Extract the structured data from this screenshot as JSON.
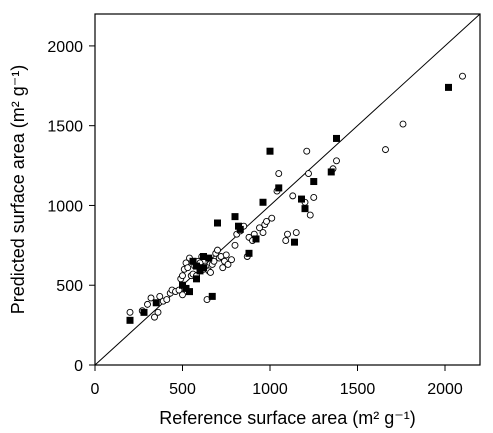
{
  "chart_data": {
    "type": "scatter",
    "xlabel": "Reference surface area (m² g⁻¹)",
    "ylabel": "Predicted surface area (m² g⁻¹)",
    "xlim": [
      0,
      2200
    ],
    "ylim": [
      0,
      2200
    ],
    "x_ticks": [
      0,
      500,
      1000,
      1500,
      2000
    ],
    "y_ticks": [
      0,
      500,
      1000,
      1500,
      2000
    ],
    "x_tick_labels": [
      "0",
      "500",
      "1000",
      "1500",
      "2000"
    ],
    "y_tick_labels": [
      "0",
      "500",
      "1000",
      "1500",
      "2000"
    ],
    "grid": false,
    "reference_line": {
      "type": "identity",
      "from": [
        0,
        0
      ],
      "to": [
        2200,
        2200
      ]
    },
    "series": [
      {
        "marker": "open-circle",
        "color": "#000000",
        "points": [
          [
            200,
            330
          ],
          [
            270,
            340
          ],
          [
            300,
            380
          ],
          [
            320,
            420
          ],
          [
            340,
            300
          ],
          [
            360,
            330
          ],
          [
            370,
            430
          ],
          [
            390,
            400
          ],
          [
            410,
            410
          ],
          [
            430,
            450
          ],
          [
            440,
            470
          ],
          [
            460,
            460
          ],
          [
            480,
            470
          ],
          [
            490,
            540
          ],
          [
            500,
            440
          ],
          [
            500,
            560
          ],
          [
            510,
            600
          ],
          [
            520,
            640
          ],
          [
            530,
            610
          ],
          [
            540,
            670
          ],
          [
            550,
            560
          ],
          [
            560,
            570
          ],
          [
            570,
            620
          ],
          [
            580,
            560
          ],
          [
            590,
            650
          ],
          [
            600,
            640
          ],
          [
            610,
            680
          ],
          [
            620,
            600
          ],
          [
            630,
            620
          ],
          [
            640,
            410
          ],
          [
            650,
            590
          ],
          [
            660,
            580
          ],
          [
            670,
            630
          ],
          [
            680,
            650
          ],
          [
            690,
            700
          ],
          [
            700,
            720
          ],
          [
            710,
            670
          ],
          [
            720,
            680
          ],
          [
            730,
            610
          ],
          [
            740,
            650
          ],
          [
            750,
            690
          ],
          [
            760,
            630
          ],
          [
            780,
            660
          ],
          [
            800,
            750
          ],
          [
            810,
            820
          ],
          [
            830,
            840
          ],
          [
            850,
            870
          ],
          [
            870,
            680
          ],
          [
            880,
            800
          ],
          [
            900,
            780
          ],
          [
            910,
            820
          ],
          [
            940,
            860
          ],
          [
            960,
            830
          ],
          [
            970,
            880
          ],
          [
            980,
            900
          ],
          [
            1040,
            1090
          ],
          [
            1050,
            1200
          ],
          [
            1090,
            780
          ],
          [
            1100,
            820
          ],
          [
            1150,
            830
          ],
          [
            1200,
            1020
          ],
          [
            1210,
            1340
          ],
          [
            1220,
            1200
          ],
          [
            1250,
            1050
          ],
          [
            1360,
            1230
          ],
          [
            1380,
            1280
          ],
          [
            1660,
            1350
          ],
          [
            1760,
            1510
          ],
          [
            2100,
            1810
          ],
          [
            1230,
            940
          ],
          [
            1010,
            920
          ],
          [
            1130,
            1060
          ]
        ]
      },
      {
        "marker": "filled-square",
        "color": "#000000",
        "points": [
          [
            200,
            280
          ],
          [
            280,
            330
          ],
          [
            350,
            390
          ],
          [
            500,
            500
          ],
          [
            520,
            480
          ],
          [
            540,
            460
          ],
          [
            560,
            650
          ],
          [
            580,
            620
          ],
          [
            600,
            590
          ],
          [
            620,
            610
          ],
          [
            650,
            670
          ],
          [
            670,
            430
          ],
          [
            700,
            890
          ],
          [
            800,
            930
          ],
          [
            820,
            870
          ],
          [
            830,
            850
          ],
          [
            880,
            700
          ],
          [
            920,
            790
          ],
          [
            960,
            1020
          ],
          [
            1000,
            1340
          ],
          [
            1050,
            1110
          ],
          [
            1140,
            770
          ],
          [
            1180,
            1040
          ],
          [
            1200,
            980
          ],
          [
            1250,
            1150
          ],
          [
            1350,
            1210
          ],
          [
            1380,
            1420
          ],
          [
            2020,
            1740
          ],
          [
            580,
            540
          ],
          [
            620,
            680
          ]
        ]
      }
    ]
  }
}
